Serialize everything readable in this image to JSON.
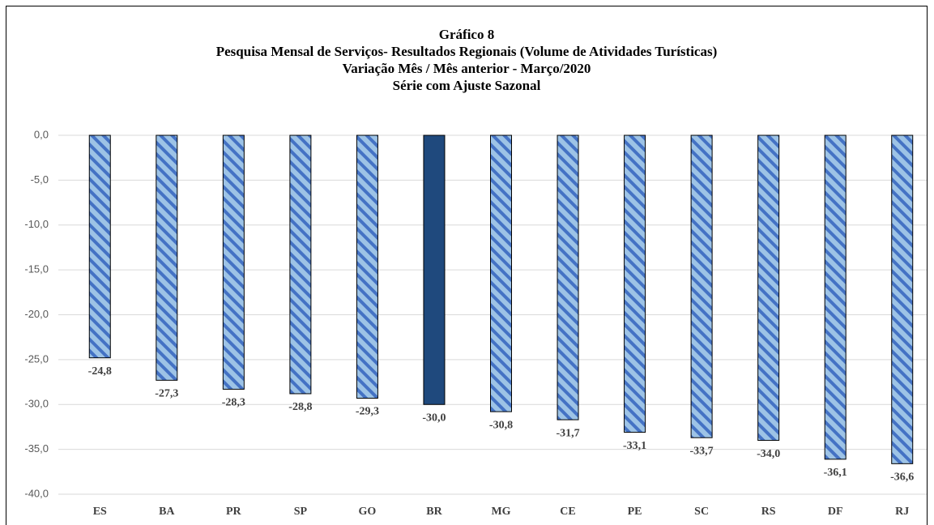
{
  "chart_data": {
    "type": "bar",
    "title": [
      "Gráfico 8",
      "Pesquisa Mensal de Serviços- Resultados Regionais (Volume de Atividades Turísticas)",
      "Variação Mês / Mês anterior  - Março/2020",
      "Série com Ajuste Sazonal"
    ],
    "categories": [
      "ES",
      "BA",
      "PR",
      "SP",
      "GO",
      "BR",
      "MG",
      "CE",
      "PE",
      "SC",
      "RS",
      "DF",
      "RJ"
    ],
    "values": [
      -24.8,
      -27.3,
      -28.3,
      -28.8,
      -29.3,
      -30.0,
      -30.8,
      -31.7,
      -33.1,
      -33.7,
      -34.0,
      -36.1,
      -36.6
    ],
    "value_labels": [
      "-24,8",
      "-27,3",
      "-28,3",
      "-28,8",
      "-29,3",
      "-30,0",
      "-30,8",
      "-31,7",
      "-33,1",
      "-33,7",
      "-34,0",
      "-36,1",
      "-36,6"
    ],
    "color": "#9dc3e6",
    "stripe_color": "#4472c4",
    "highlight_category": "BR",
    "highlight_color": "#1f497d",
    "ylim": [
      -40,
      0
    ],
    "yticks": [
      {
        "value": 0,
        "label": "0,0"
      },
      {
        "value": -5,
        "label": "-5,0"
      },
      {
        "value": -10,
        "label": "-10,0"
      },
      {
        "value": -15,
        "label": "-15,0"
      },
      {
        "value": -20,
        "label": "-20,0"
      },
      {
        "value": -25,
        "label": "-25,0"
      },
      {
        "value": -30,
        "label": "-30,0"
      },
      {
        "value": -35,
        "label": "-35,0"
      },
      {
        "value": -40,
        "label": "-40,0"
      }
    ],
    "grid": true
  }
}
